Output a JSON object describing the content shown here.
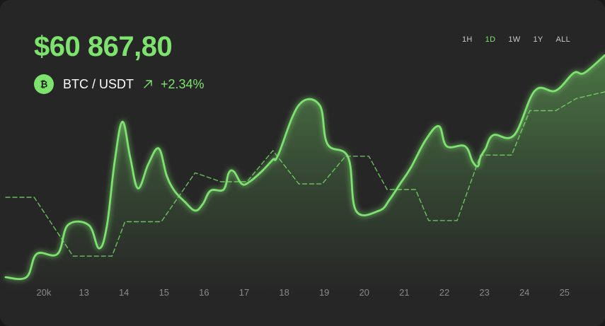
{
  "header": {
    "price": "$60 867,80",
    "pair": "BTC / USDT",
    "change": "+2.34%"
  },
  "icons": {
    "coin": "bitcoin-icon",
    "trend": "arrow-up-right-icon"
  },
  "timeframes": [
    {
      "label": "1H",
      "active": false
    },
    {
      "label": "1D",
      "active": true
    },
    {
      "label": "1W",
      "active": false
    },
    {
      "label": "1Y",
      "active": false
    },
    {
      "label": "ALL",
      "active": false
    }
  ],
  "colors": {
    "background": "#262626",
    "accent": "#7ee26f",
    "text": "#ffffff",
    "muted": "#8a8a8a"
  },
  "chart_data": {
    "type": "line",
    "title": "",
    "xlabel": "",
    "ylabel": "",
    "x_tick_labels": [
      "20k",
      "13",
      "14",
      "15",
      "16",
      "17",
      "18",
      "19",
      "20",
      "21",
      "22",
      "23",
      "24",
      "25"
    ],
    "xlim": [
      12,
      26
    ],
    "ylim": [
      0,
      100
    ],
    "grid": false,
    "legend": "none",
    "series": [
      {
        "style": "solid",
        "area_fill": true,
        "points": [
          [
            11.9,
            0
          ],
          [
            12.3,
            0
          ],
          [
            12.5,
            10.5
          ],
          [
            12.9,
            10.5
          ],
          [
            13.1,
            23.5
          ],
          [
            13.5,
            23.5
          ],
          [
            13.7,
            13
          ],
          [
            13.85,
            23
          ],
          [
            14.0,
            52
          ],
          [
            14.15,
            70
          ],
          [
            14.3,
            54
          ],
          [
            14.45,
            40
          ],
          [
            14.65,
            51
          ],
          [
            14.85,
            58
          ],
          [
            15.0,
            46
          ],
          [
            15.15,
            39
          ],
          [
            15.35,
            34
          ],
          [
            15.55,
            30
          ],
          [
            15.7,
            33
          ],
          [
            15.85,
            39
          ],
          [
            16.1,
            39.5
          ],
          [
            16.2,
            47
          ],
          [
            16.3,
            47.5
          ],
          [
            16.45,
            42
          ],
          [
            16.6,
            43
          ],
          [
            16.85,
            48
          ],
          [
            17.05,
            53
          ],
          [
            17.15,
            55
          ],
          [
            17.55,
            77.5
          ],
          [
            17.95,
            77.5
          ],
          [
            18.1,
            60
          ],
          [
            18.5,
            54
          ],
          [
            18.65,
            30
          ],
          [
            19.1,
            30
          ],
          [
            19.3,
            35
          ],
          [
            19.5,
            42
          ],
          [
            19.7,
            49
          ],
          [
            20.0,
            62
          ],
          [
            20.25,
            68
          ],
          [
            20.4,
            59
          ],
          [
            20.75,
            59
          ],
          [
            20.9,
            52
          ],
          [
            21.0,
            50
          ],
          [
            21.05,
            54
          ],
          [
            21.15,
            58
          ],
          [
            21.3,
            64
          ],
          [
            21.7,
            64
          ],
          [
            22.1,
            84
          ],
          [
            22.5,
            84
          ],
          [
            22.85,
            92
          ],
          [
            23.05,
            92
          ],
          [
            23.45,
            100
          ]
        ]
      },
      {
        "style": "dashed",
        "area_fill": false,
        "points": [
          [
            11.9,
            36
          ],
          [
            12.05,
            36
          ],
          [
            12.45,
            36
          ],
          [
            13.2,
            9.5
          ],
          [
            13.95,
            9.5
          ],
          [
            14.2,
            25
          ],
          [
            14.9,
            25
          ],
          [
            15.55,
            47
          ],
          [
            16.05,
            43
          ],
          [
            16.55,
            43
          ],
          [
            17.05,
            57
          ],
          [
            17.55,
            42
          ],
          [
            18.0,
            42
          ],
          [
            18.45,
            54.5
          ],
          [
            18.9,
            54.5
          ],
          [
            19.25,
            39.5
          ],
          [
            19.8,
            39.5
          ],
          [
            20.05,
            25.5
          ],
          [
            20.6,
            25.5
          ],
          [
            21.05,
            55
          ],
          [
            21.65,
            55
          ],
          [
            22.0,
            75
          ],
          [
            22.5,
            75
          ],
          [
            22.9,
            80.5
          ],
          [
            23.45,
            83.5
          ]
        ]
      }
    ]
  }
}
